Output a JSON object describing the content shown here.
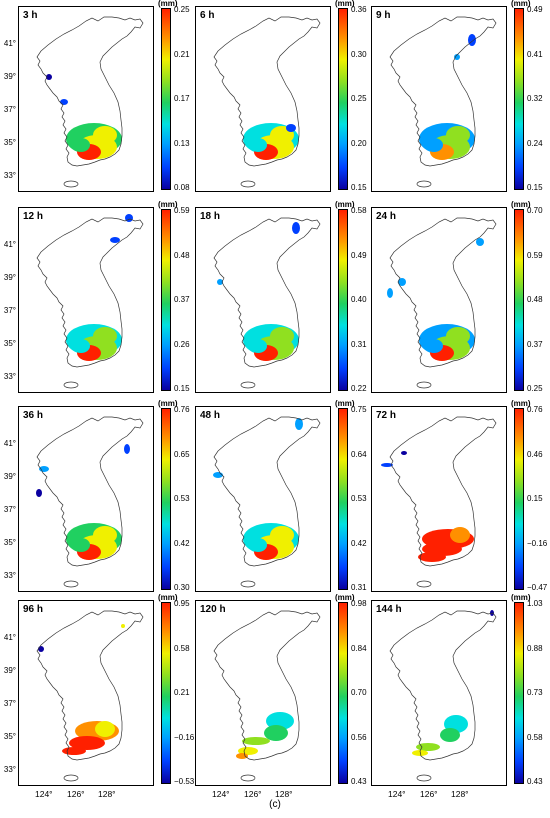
{
  "figure": {
    "caption": "(c)",
    "y_tick_labels": [
      "41°",
      "39°",
      "37°",
      "35°",
      "33°"
    ],
    "x_tick_labels": [
      "124°",
      "126°",
      "128°"
    ],
    "colorbar_unit": "(mm)",
    "colormap_colors": [
      "#0a00a0",
      "#0040ff",
      "#00a0ff",
      "#00e0e0",
      "#20d060",
      "#90e020",
      "#f0f000",
      "#ff9000",
      "#ff2000"
    ]
  },
  "panels": [
    {
      "lead_time": "3 h",
      "colorbar_ticks": [
        "0.25",
        "0.21",
        "0.17",
        "0.13",
        "0.08"
      ]
    },
    {
      "lead_time": "6 h",
      "colorbar_ticks": [
        "0.36",
        "0.30",
        "0.25",
        "0.20",
        "0.15"
      ]
    },
    {
      "lead_time": "9 h",
      "colorbar_ticks": [
        "0.49",
        "0.41",
        "0.32",
        "0.24",
        "0.15"
      ]
    },
    {
      "lead_time": "12 h",
      "colorbar_ticks": [
        "0.59",
        "0.48",
        "0.37",
        "0.26",
        "0.15"
      ]
    },
    {
      "lead_time": "18 h",
      "colorbar_ticks": [
        "0.58",
        "0.49",
        "0.40",
        "0.31",
        "0.22"
      ]
    },
    {
      "lead_time": "24 h",
      "colorbar_ticks": [
        "0.70",
        "0.59",
        "0.48",
        "0.37",
        "0.25"
      ]
    },
    {
      "lead_time": "36 h",
      "colorbar_ticks": [
        "0.76",
        "0.65",
        "0.53",
        "0.42",
        "0.30"
      ]
    },
    {
      "lead_time": "48 h",
      "colorbar_ticks": [
        "0.75",
        "0.64",
        "0.53",
        "0.42",
        "0.31"
      ]
    },
    {
      "lead_time": "72 h",
      "colorbar_ticks": [
        "0.76",
        "0.46",
        "0.15",
        "−0.16",
        "−0.47"
      ]
    },
    {
      "lead_time": "96 h",
      "colorbar_ticks": [
        "0.95",
        "0.58",
        "0.21",
        "−0.16",
        "−0.53"
      ]
    },
    {
      "lead_time": "120 h",
      "colorbar_ticks": [
        "0.98",
        "0.84",
        "0.70",
        "0.56",
        "0.43"
      ]
    },
    {
      "lead_time": "144 h",
      "colorbar_ticks": [
        "1.03",
        "0.88",
        "0.73",
        "0.58",
        "0.43"
      ]
    }
  ]
}
